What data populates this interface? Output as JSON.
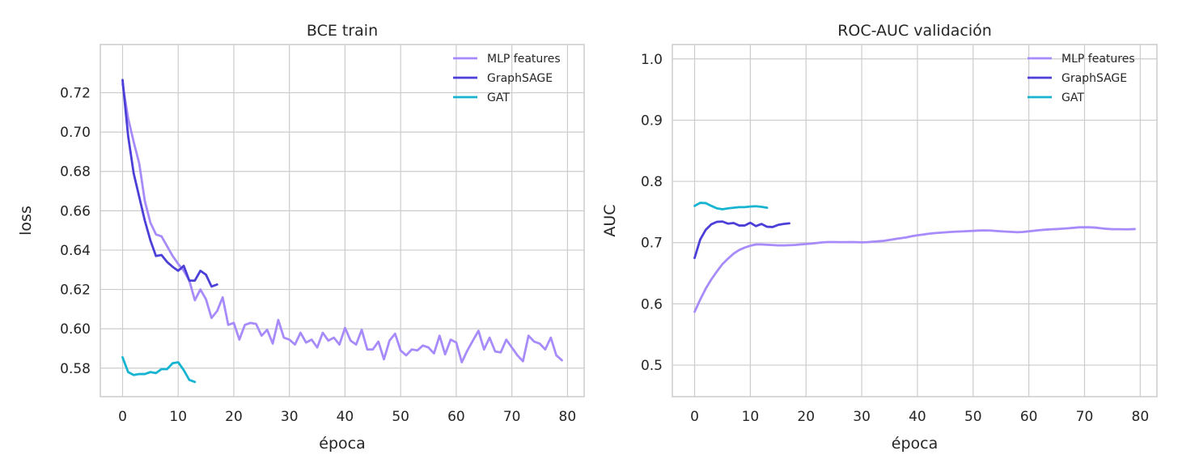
{
  "chart_data": [
    {
      "type": "line",
      "title": "BCE train",
      "xlabel": "época",
      "ylabel": "loss",
      "xlim": [
        -4,
        83
      ],
      "ylim": [
        0.5655,
        0.7445
      ],
      "xticks": [
        0,
        10,
        20,
        30,
        40,
        50,
        60,
        70,
        80
      ],
      "yticks": [
        0.58,
        0.6,
        0.62,
        0.64,
        0.66,
        0.68,
        0.7,
        0.72
      ],
      "ytick_decimals": 2,
      "grid": true,
      "legend": "top-right",
      "series": [
        {
          "name": "MLP features",
          "color": "#a78bfa",
          "values": [
            0.7245,
            0.707,
            0.695,
            0.684,
            0.665,
            0.654,
            0.648,
            0.647,
            0.642,
            0.637,
            0.633,
            0.6295,
            0.6245,
            0.6145,
            0.62,
            0.615,
            0.6055,
            0.609,
            0.616,
            0.602,
            0.603,
            0.5945,
            0.602,
            0.603,
            0.6025,
            0.5965,
            0.5995,
            0.5925,
            0.6045,
            0.5955,
            0.5945,
            0.592,
            0.598,
            0.593,
            0.5945,
            0.5905,
            0.598,
            0.594,
            0.5955,
            0.592,
            0.6005,
            0.594,
            0.592,
            0.5995,
            0.5895,
            0.5895,
            0.5935,
            0.5845,
            0.594,
            0.5975,
            0.589,
            0.5865,
            0.5895,
            0.589,
            0.5915,
            0.5905,
            0.5875,
            0.5965,
            0.587,
            0.5945,
            0.593,
            0.583,
            0.589,
            0.594,
            0.599,
            0.5895,
            0.5955,
            0.5885,
            0.588,
            0.5945,
            0.5905,
            0.5865,
            0.5835,
            0.5965,
            0.5935,
            0.5925,
            0.5895,
            0.5955,
            0.5865,
            0.584
          ]
        },
        {
          "name": "GraphSAGE",
          "color": "#4c3fd8",
          "values": [
            0.7265,
            0.698,
            0.679,
            0.667,
            0.655,
            0.645,
            0.637,
            0.6375,
            0.634,
            0.6315,
            0.6295,
            0.632,
            0.6245,
            0.6245,
            0.6295,
            0.6275,
            0.6215,
            0.6225
          ]
        },
        {
          "name": "GAT",
          "color": "#16b4d0",
          "values": [
            0.5855,
            0.578,
            0.5765,
            0.577,
            0.577,
            0.578,
            0.5775,
            0.5795,
            0.5795,
            0.5825,
            0.583,
            0.579,
            0.574,
            0.573
          ]
        }
      ]
    },
    {
      "type": "line",
      "title": "ROC-AUC validación",
      "xlabel": "época",
      "ylabel": "AUC",
      "xlim": [
        -4,
        83
      ],
      "ylim": [
        0.4485,
        1.0235
      ],
      "xticks": [
        0,
        10,
        20,
        30,
        40,
        50,
        60,
        70,
        80
      ],
      "yticks": [
        0.5,
        0.6,
        0.7,
        0.8,
        0.9,
        1.0
      ],
      "ytick_decimals": 1,
      "grid": true,
      "legend": "top-right",
      "series": [
        {
          "name": "MLP features",
          "color": "#a78bfa",
          "values": [
            0.587,
            0.607,
            0.625,
            0.64,
            0.653,
            0.665,
            0.674,
            0.682,
            0.688,
            0.692,
            0.695,
            0.697,
            0.697,
            0.6965,
            0.696,
            0.6955,
            0.6955,
            0.6958,
            0.6962,
            0.697,
            0.6978,
            0.6985,
            0.6995,
            0.7005,
            0.701,
            0.701,
            0.7008,
            0.7008,
            0.701,
            0.7008,
            0.7005,
            0.7008,
            0.7015,
            0.7022,
            0.703,
            0.7045,
            0.706,
            0.7072,
            0.7085,
            0.7105,
            0.712,
            0.7132,
            0.7145,
            0.7155,
            0.7162,
            0.7168,
            0.7175,
            0.718,
            0.7183,
            0.7188,
            0.7192,
            0.7198,
            0.72,
            0.7198,
            0.7192,
            0.7185,
            0.718,
            0.7175,
            0.717,
            0.7175,
            0.7185,
            0.7195,
            0.7205,
            0.7212,
            0.7218,
            0.7222,
            0.7228,
            0.7235,
            0.7242,
            0.725,
            0.7252,
            0.725,
            0.7245,
            0.7235,
            0.7225,
            0.722,
            0.722,
            0.7218,
            0.7218,
            0.7222
          ]
        },
        {
          "name": "GraphSAGE",
          "color": "#4c3fd8",
          "values": [
            0.675,
            0.705,
            0.721,
            0.73,
            0.734,
            0.7345,
            0.731,
            0.732,
            0.728,
            0.728,
            0.7325,
            0.727,
            0.7305,
            0.726,
            0.7255,
            0.729,
            0.7305,
            0.7315
          ]
        },
        {
          "name": "GAT",
          "color": "#16b4d0",
          "values": [
            0.76,
            0.765,
            0.7645,
            0.76,
            0.756,
            0.7545,
            0.756,
            0.757,
            0.758,
            0.758,
            0.759,
            0.7595,
            0.7585,
            0.757
          ]
        }
      ]
    }
  ]
}
